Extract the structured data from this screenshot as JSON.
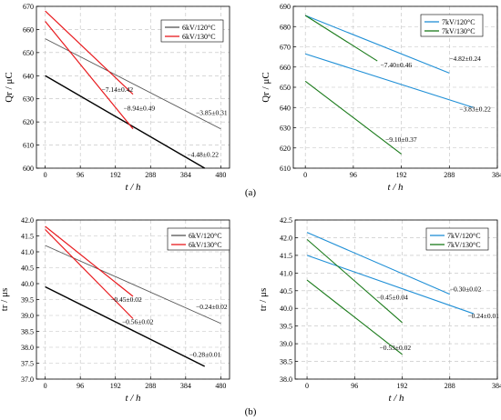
{
  "figure": {
    "captions": [
      "(a)",
      "(b)"
    ]
  },
  "chart_data": [
    {
      "type": "line",
      "xlabel": "t / h",
      "ylabel": "Qr / μC",
      "xlim": [
        -24,
        504
      ],
      "ylim": [
        600,
        670
      ],
      "xticks": [
        0,
        96,
        192,
        288,
        384,
        480
      ],
      "yticks": [
        600,
        610,
        620,
        630,
        640,
        650,
        660,
        670
      ],
      "grid": true,
      "legend": "top-right",
      "legend_entries": [
        {
          "label": "6kV/120°C",
          "color": "#555555"
        },
        {
          "label": "6kV/130°C",
          "color": "#e8191d"
        }
      ],
      "series": [
        {
          "group": "6kV/120°C",
          "color": "#555555",
          "width": 0.9,
          "x": [
            0,
            480
          ],
          "y": [
            656,
            617
          ]
        },
        {
          "group": "6kV/120°C",
          "color": "#000000",
          "width": 1.4,
          "x": [
            0,
            436
          ],
          "y": [
            640,
            600
          ]
        },
        {
          "group": "6kV/130°C",
          "color": "#e8191d",
          "width": 1.2,
          "x": [
            0,
            240
          ],
          "y": [
            668,
            632
          ]
        },
        {
          "group": "6kV/130°C",
          "color": "#e8191d",
          "width": 1.2,
          "x": [
            0,
            240
          ],
          "y": [
            663.5,
            617
          ]
        }
      ],
      "annotations": [
        {
          "text": "−7.14±0.42",
          "x": 154,
          "y": 633
        },
        {
          "text": "−8.94±0.49",
          "x": 214,
          "y": 625
        },
        {
          "text": "−3.85±0.31",
          "x": 412,
          "y": 623
        },
        {
          "text": "−4.48±0.22",
          "x": 388,
          "y": 605
        }
      ]
    },
    {
      "type": "line",
      "xlabel": "t / h",
      "ylabel": "Qr / μC",
      "xlim": [
        -24,
        384
      ],
      "ylim": [
        610,
        690
      ],
      "xticks": [
        0,
        96,
        192,
        288,
        384
      ],
      "yticks": [
        610,
        620,
        630,
        640,
        650,
        660,
        670,
        680,
        690
      ],
      "grid": true,
      "legend": "top-right",
      "legend_entries": [
        {
          "label": "7kV/120°C",
          "color": "#1f8fd6"
        },
        {
          "label": "7kV/130°C",
          "color": "#1a7a1a"
        }
      ],
      "series": [
        {
          "group": "7kV/120°C",
          "color": "#1f8fd6",
          "width": 1.1,
          "x": [
            0,
            288
          ],
          "y": [
            685.5,
            657
          ]
        },
        {
          "group": "7kV/120°C",
          "color": "#1f8fd6",
          "width": 1.1,
          "x": [
            0,
            336
          ],
          "y": [
            666.5,
            640
          ]
        },
        {
          "group": "7kV/130°C",
          "color": "#1a7a1a",
          "width": 1.1,
          "x": [
            0,
            144
          ],
          "y": [
            685.5,
            663
          ]
        },
        {
          "group": "7kV/130°C",
          "color": "#1a7a1a",
          "width": 1.1,
          "x": [
            0,
            192
          ],
          "y": [
            653,
            617
          ]
        }
      ],
      "annotations": [
        {
          "text": "−7.40±0.46",
          "x": 150,
          "y": 660
        },
        {
          "text": "−4.82±0.24",
          "x": 288,
          "y": 663
        },
        {
          "text": "−3.83±0.22",
          "x": 308,
          "y": 638
        },
        {
          "text": "−9.10±0.37",
          "x": 160,
          "y": 623
        }
      ]
    },
    {
      "type": "line",
      "xlabel": "t / h",
      "ylabel": "tr / μs",
      "xlim": [
        -24,
        504
      ],
      "ylim": [
        37.0,
        42.0
      ],
      "xticks": [
        0,
        96,
        192,
        288,
        384,
        480
      ],
      "yticks": [
        37.0,
        37.5,
        38.0,
        38.5,
        39.0,
        39.5,
        40.0,
        40.5,
        41.0,
        41.5,
        42.0
      ],
      "grid": true,
      "legend": "top-right",
      "legend_entries": [
        {
          "label": "6kV/120°C",
          "color": "#555555"
        },
        {
          "label": "6kV/130°C",
          "color": "#e8191d"
        }
      ],
      "series": [
        {
          "group": "6kV/120°C",
          "color": "#555555",
          "width": 0.9,
          "x": [
            0,
            480
          ],
          "y": [
            41.2,
            38.75
          ]
        },
        {
          "group": "6kV/120°C",
          "color": "#000000",
          "width": 1.4,
          "x": [
            0,
            436
          ],
          "y": [
            39.9,
            37.4
          ]
        },
        {
          "group": "6kV/130°C",
          "color": "#e8191d",
          "width": 1.2,
          "x": [
            0,
            240
          ],
          "y": [
            41.8,
            39.6
          ]
        },
        {
          "group": "6kV/130°C",
          "color": "#e8191d",
          "width": 1.2,
          "x": [
            0,
            240
          ],
          "y": [
            41.7,
            38.9
          ]
        }
      ],
      "annotations": [
        {
          "text": "−0.45±0.02",
          "x": 178,
          "y": 39.43
        },
        {
          "text": "−0.56±0.02",
          "x": 210,
          "y": 38.73
        },
        {
          "text": "−0.24±0.02",
          "x": 412,
          "y": 39.2
        },
        {
          "text": "−0.28±0.01",
          "x": 394,
          "y": 37.7
        }
      ]
    },
    {
      "type": "line",
      "xlabel": "t / h",
      "ylabel": "tr / μs",
      "xlim": [
        -24,
        384
      ],
      "ylim": [
        38.0,
        42.5
      ],
      "xticks": [
        0,
        96,
        192,
        288,
        384
      ],
      "yticks": [
        38.0,
        38.5,
        39.0,
        39.5,
        40.0,
        40.5,
        41.0,
        41.5,
        42.0,
        42.5
      ],
      "grid": true,
      "legend": "top-right",
      "legend_entries": [
        {
          "label": "7kV/120°C",
          "color": "#1f8fd6"
        },
        {
          "label": "7kV/130°C",
          "color": "#1a7a1a"
        }
      ],
      "series": [
        {
          "group": "7kV/120°C",
          "color": "#1f8fd6",
          "width": 1.1,
          "x": [
            0,
            288
          ],
          "y": [
            42.15,
            40.4
          ]
        },
        {
          "group": "7kV/120°C",
          "color": "#1f8fd6",
          "width": 1.1,
          "x": [
            0,
            336
          ],
          "y": [
            41.5,
            39.85
          ]
        },
        {
          "group": "7kV/130°C",
          "color": "#1a7a1a",
          "width": 1.1,
          "x": [
            0,
            192
          ],
          "y": [
            41.95,
            39.6
          ]
        },
        {
          "group": "7kV/130°C",
          "color": "#1a7a1a",
          "width": 1.1,
          "x": [
            0,
            192
          ],
          "y": [
            40.8,
            38.7
          ]
        }
      ],
      "annotations": [
        {
          "text": "−0.45±0.04",
          "x": 140,
          "y": 40.25
        },
        {
          "text": "−0.30±0.02",
          "x": 288,
          "y": 40.48
        },
        {
          "text": "−0.24±0.01",
          "x": 324,
          "y": 39.72
        },
        {
          "text": "−0.53±0.02",
          "x": 146,
          "y": 38.82
        }
      ]
    }
  ]
}
